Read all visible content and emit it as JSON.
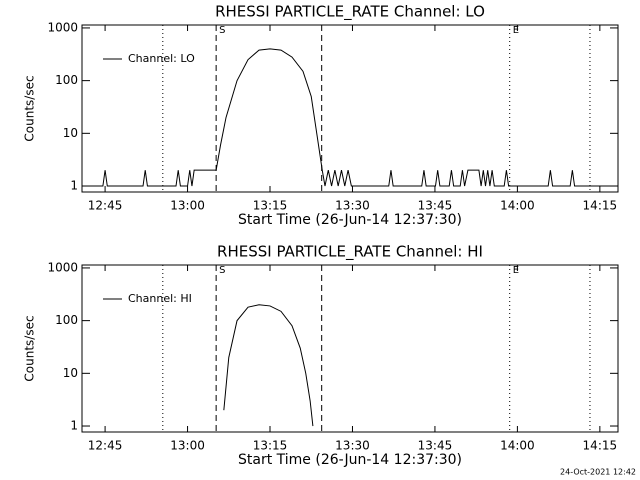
{
  "chart_data": [
    {
      "type": "line",
      "title": "RHESSI PARTICLE_RATE Channel: LO",
      "x_label": "Start Time (26-Jun-14 12:37:30)",
      "y_label": "Counts/sec",
      "log_y": true,
      "legend": "top-left",
      "xlim": [
        760.8,
        858.3
      ],
      "ylim": [
        0.77,
        1137
      ],
      "xticks": [
        {
          "value": 765,
          "label": "12:45"
        },
        {
          "value": 780,
          "label": "13:00"
        },
        {
          "value": 795,
          "label": "13:15"
        },
        {
          "value": 810,
          "label": "13:30"
        },
        {
          "value": 825,
          "label": "13:45"
        },
        {
          "value": 840,
          "label": "14:00"
        },
        {
          "value": 855,
          "label": "14:15"
        }
      ],
      "yticks": [
        1,
        10,
        100,
        1000
      ],
      "vlines": [
        {
          "x": 775.5,
          "style": "dotted"
        },
        {
          "x": 785.2,
          "style": "dashed"
        },
        {
          "x": 804.4,
          "style": "dashed"
        },
        {
          "x": 838.6,
          "style": "dotted"
        },
        {
          "x": 853.2,
          "style": "dotted"
        }
      ],
      "annotations": [
        {
          "x": 785.2,
          "text": "S"
        },
        {
          "x": 838.6,
          "text": "E"
        }
      ],
      "series": [
        {
          "name": "Channel: LO",
          "color": "#000000",
          "x": [
            760.8,
            764.6,
            765,
            765.4,
            771.9,
            772.3,
            772.7,
            777.9,
            778.3,
            778.7,
            780,
            780.4,
            780.8,
            781.2,
            785.2,
            786,
            787,
            789,
            791,
            793,
            795,
            797,
            799,
            801,
            802.5,
            803.5,
            804.5,
            805,
            805.6,
            806.2,
            806.8,
            807.4,
            808,
            808.6,
            809.2,
            809.8,
            816.6,
            817,
            817.4,
            822.6,
            823,
            823.4,
            825.1,
            825.5,
            825.9,
            827.6,
            828,
            828.4,
            829.6,
            830,
            830.4,
            831,
            833,
            833.4,
            833.8,
            834.2,
            834.6,
            835,
            835.4,
            835.8,
            837.6,
            838,
            838.4,
            845.6,
            846,
            846.4,
            849.6,
            850,
            850.4,
            858.3
          ],
          "values": [
            1,
            1,
            2,
            1,
            1,
            2,
            1,
            1,
            2,
            1,
            1,
            2,
            1,
            2,
            2,
            6,
            20,
            100,
            250,
            380,
            400,
            380,
            280,
            150,
            50,
            10,
            2,
            1,
            2,
            1,
            2,
            1,
            2,
            1,
            2,
            1,
            1,
            2,
            1,
            1,
            2,
            1,
            1,
            2,
            1,
            1,
            2,
            1,
            1,
            2,
            1,
            2,
            2,
            1,
            2,
            1,
            2,
            1,
            2,
            1,
            1,
            2,
            1,
            1,
            2,
            1,
            1,
            2,
            1,
            1
          ]
        }
      ]
    },
    {
      "type": "line",
      "title": "RHESSI PARTICLE_RATE Channel: HI",
      "x_label": "Start Time (26-Jun-14 12:37:30)",
      "y_label": "Counts/sec",
      "log_y": true,
      "legend": "top-left",
      "xlim": [
        760.8,
        858.3
      ],
      "ylim": [
        0.77,
        1137
      ],
      "xticks": [
        {
          "value": 765,
          "label": "12:45"
        },
        {
          "value": 780,
          "label": "13:00"
        },
        {
          "value": 795,
          "label": "13:15"
        },
        {
          "value": 810,
          "label": "13:30"
        },
        {
          "value": 825,
          "label": "13:45"
        },
        {
          "value": 840,
          "label": "14:00"
        },
        {
          "value": 855,
          "label": "14:15"
        }
      ],
      "yticks": [
        1,
        10,
        100,
        1000
      ],
      "vlines": [
        {
          "x": 775.5,
          "style": "dotted"
        },
        {
          "x": 785.2,
          "style": "dashed"
        },
        {
          "x": 804.4,
          "style": "dashed"
        },
        {
          "x": 838.6,
          "style": "dotted"
        },
        {
          "x": 853.2,
          "style": "dotted"
        }
      ],
      "annotations": [
        {
          "x": 785.2,
          "text": "S"
        },
        {
          "x": 838.6,
          "text": "E"
        }
      ],
      "series": [
        {
          "name": "Channel: HI",
          "color": "#000000",
          "x": [
            786.6,
            787.5,
            789,
            791,
            793,
            795,
            797,
            799,
            800.5,
            801.5,
            802.3,
            802.8
          ],
          "values": [
            2,
            20,
            100,
            180,
            200,
            190,
            150,
            80,
            30,
            10,
            3,
            1
          ]
        }
      ]
    }
  ],
  "footer": "24-Oct-2021 12:42"
}
